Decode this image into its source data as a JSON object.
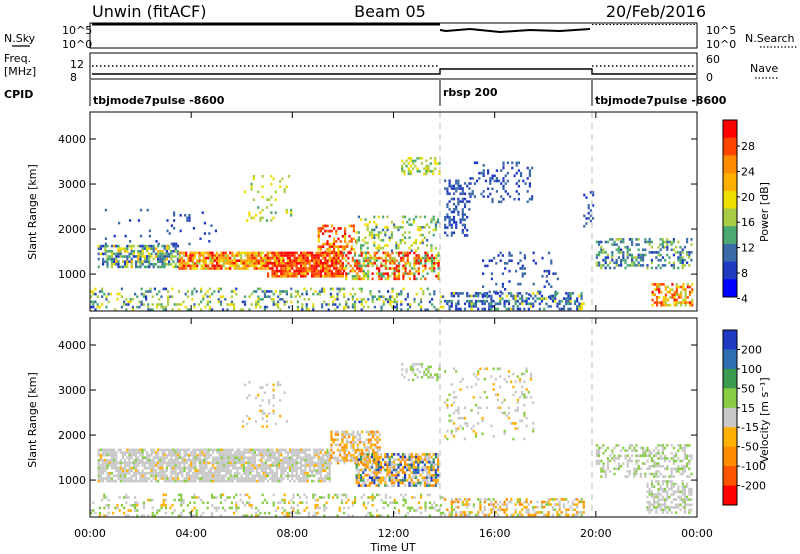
{
  "header": {
    "station": "Unwin (fitACF)",
    "beam": "Beam 05",
    "date": "20/Feb/2016"
  },
  "left_labels": {
    "nsky": "N.Sky",
    "freq_line1": "Freq.",
    "freq_line2": "[MHz]",
    "cpid": "CPID"
  },
  "right_labels": {
    "nsearch": "N.Search",
    "nave": "Nave"
  },
  "noise_panel": {
    "left_ticks": [
      "10^5",
      "10^0"
    ],
    "right_ticks": [
      "10^5",
      "10^0"
    ]
  },
  "freq_panel": {
    "left_ticks": [
      "12",
      "8"
    ],
    "right_ticks": [
      "60",
      "0"
    ]
  },
  "cpid_panel": {
    "segments": [
      {
        "label": "tbjmode7pulse -8600",
        "start_hour": 0,
        "end_hour": 14
      },
      {
        "label": "rbsp 200",
        "start_hour": 14,
        "end_hour": 20
      },
      {
        "label": "tbjmode7pulse -8600",
        "start_hour": 20,
        "end_hour": 24
      }
    ]
  },
  "chart_data": [
    {
      "type": "heatmap",
      "name": "power",
      "ylabel": "Slant Range [km]",
      "x_range_hours": [
        0,
        24
      ],
      "ylim": [
        180,
        4600
      ],
      "y_ticks": [
        1000,
        2000,
        3000,
        4000
      ],
      "colorbar": {
        "label": "Power [dB]",
        "ticks": [
          "28",
          "24",
          "20",
          "16",
          "12",
          "8",
          "4"
        ],
        "colors": [
          "#ff0000",
          "#ff4400",
          "#ff8c00",
          "#ffb000",
          "#eedd00",
          "#a8cc44",
          "#4aa870",
          "#3a6aa8",
          "#1f3ac0",
          "#0000ff"
        ]
      },
      "scatter_regions": [
        {
          "x0": 0.3,
          "x1": 3.5,
          "y0": 1150,
          "y1": 1650,
          "density": 0.65,
          "dist": [
            [
              3,
              0.08
            ],
            [
              4,
              0.12
            ],
            [
              5,
              0.15
            ],
            [
              6,
              0.28
            ],
            [
              7,
              0.25
            ],
            [
              8,
              0.12
            ]
          ]
        },
        {
          "x0": 3.5,
          "x1": 7.0,
          "y0": 1150,
          "y1": 1500,
          "density": 0.85,
          "dist": [
            [
              0,
              0.12
            ],
            [
              1,
              0.2
            ],
            [
              2,
              0.2
            ],
            [
              3,
              0.25
            ],
            [
              4,
              0.15
            ],
            [
              5,
              0.08
            ]
          ]
        },
        {
          "x0": 7.0,
          "x1": 10.0,
          "y0": 950,
          "y1": 1500,
          "density": 0.9,
          "dist": [
            [
              0,
              0.35
            ],
            [
              1,
              0.3
            ],
            [
              2,
              0.2
            ],
            [
              3,
              0.1
            ],
            [
              4,
              0.05
            ]
          ]
        },
        {
          "x0": 9.0,
          "x1": 10.5,
          "y0": 1500,
          "y1": 2100,
          "density": 0.45,
          "dist": [
            [
              0,
              0.25
            ],
            [
              1,
              0.25
            ],
            [
              2,
              0.2
            ],
            [
              3,
              0.2
            ],
            [
              4,
              0.1
            ]
          ]
        },
        {
          "x0": 10.0,
          "x1": 13.8,
          "y0": 900,
          "y1": 1500,
          "density": 0.6,
          "dist": [
            [
              0,
              0.2
            ],
            [
              1,
              0.2
            ],
            [
              2,
              0.15
            ],
            [
              5,
              0.2
            ],
            [
              6,
              0.15
            ],
            [
              4,
              0.1
            ]
          ]
        },
        {
          "x0": 10.5,
          "x1": 13.8,
          "y0": 1500,
          "y1": 2300,
          "density": 0.3,
          "dist": [
            [
              4,
              0.3
            ],
            [
              5,
              0.3
            ],
            [
              6,
              0.3
            ],
            [
              7,
              0.1
            ]
          ]
        },
        {
          "x0": 12.3,
          "x1": 13.8,
          "y0": 3200,
          "y1": 3600,
          "density": 0.4,
          "dist": [
            [
              4,
              0.35
            ],
            [
              5,
              0.35
            ],
            [
              6,
              0.3
            ]
          ]
        },
        {
          "x0": 6.0,
          "x1": 8.0,
          "y0": 2200,
          "y1": 3200,
          "density": 0.1,
          "dist": [
            [
              4,
              0.4
            ],
            [
              5,
              0.3
            ],
            [
              6,
              0.3
            ]
          ]
        },
        {
          "x0": 0.5,
          "x1": 5.0,
          "y0": 1650,
          "y1": 2450,
          "density": 0.06,
          "dist": [
            [
              7,
              0.6
            ],
            [
              8,
              0.4
            ]
          ]
        },
        {
          "x0": 14.0,
          "x1": 15.0,
          "y0": 1850,
          "y1": 3100,
          "density": 0.4,
          "dist": [
            [
              7,
              0.5
            ],
            [
              8,
              0.5
            ]
          ]
        },
        {
          "x0": 15.0,
          "x1": 17.5,
          "y0": 2600,
          "y1": 3500,
          "density": 0.22,
          "dist": [
            [
              7,
              0.5
            ],
            [
              8,
              0.5
            ]
          ]
        },
        {
          "x0": 15.5,
          "x1": 18.5,
          "y0": 500,
          "y1": 1500,
          "density": 0.12,
          "dist": [
            [
              7,
              0.6
            ],
            [
              8,
              0.4
            ]
          ]
        },
        {
          "x0": 14.0,
          "x1": 19.5,
          "y0": 220,
          "y1": 600,
          "density": 0.5,
          "dist": [
            [
              4,
              0.1
            ],
            [
              6,
              0.2
            ],
            [
              7,
              0.4
            ],
            [
              8,
              0.3
            ]
          ]
        },
        {
          "x0": 19.5,
          "x1": 19.9,
          "y0": 2000,
          "y1": 2900,
          "density": 0.3,
          "dist": [
            [
              7,
              0.6
            ],
            [
              8,
              0.4
            ]
          ]
        },
        {
          "x0": 20.0,
          "x1": 23.8,
          "y0": 1150,
          "y1": 1800,
          "density": 0.4,
          "dist": [
            [
              5,
              0.2
            ],
            [
              6,
              0.3
            ],
            [
              7,
              0.3
            ],
            [
              8,
              0.2
            ]
          ]
        },
        {
          "x0": 22.2,
          "x1": 23.8,
          "y0": 300,
          "y1": 800,
          "density": 0.55,
          "dist": [
            [
              0,
              0.1
            ],
            [
              1,
              0.15
            ],
            [
              2,
              0.15
            ],
            [
              3,
              0.2
            ],
            [
              4,
              0.2
            ],
            [
              5,
              0.2
            ]
          ]
        },
        {
          "x0": 0,
          "x1": 14,
          "y0": 200,
          "y1": 700,
          "density": 0.3,
          "dist": [
            [
              4,
              0.2
            ],
            [
              5,
              0.3
            ],
            [
              6,
              0.2
            ],
            [
              7,
              0.2
            ],
            [
              8,
              0.1
            ]
          ]
        }
      ]
    },
    {
      "type": "heatmap",
      "name": "velocity",
      "ylabel": "Slant Range [km]",
      "xlabel": "Time UT",
      "x_range_hours": [
        0,
        24
      ],
      "x_ticks": [
        "00:00",
        "04:00",
        "08:00",
        "12:00",
        "16:00",
        "20:00",
        "00:00"
      ],
      "ylim": [
        180,
        4600
      ],
      "y_ticks": [
        1000,
        2000,
        3000,
        4000
      ],
      "colorbar": {
        "label": "Velocity [m s⁻¹]",
        "ticks": [
          "200",
          "100",
          "50",
          "15",
          "-15",
          "-50",
          "-100",
          "-200"
        ],
        "colors": [
          "#1f3ac0",
          "#2e6eb0",
          "#3a9a50",
          "#88cc44",
          "#c8c8c8",
          "#ffb000",
          "#ff8c00",
          "#ff5500",
          "#ff0000"
        ]
      },
      "scatter_regions": [
        {
          "x0": 0.3,
          "x1": 9.5,
          "y0": 1000,
          "y1": 1700,
          "density": 0.8,
          "dist": [
            [
              4,
              0.85
            ],
            [
              5,
              0.08
            ],
            [
              3,
              0.07
            ]
          ]
        },
        {
          "x0": 9.5,
          "x1": 11.5,
          "y0": 1400,
          "y1": 2100,
          "density": 0.6,
          "dist": [
            [
              4,
              0.5
            ],
            [
              5,
              0.3
            ],
            [
              6,
              0.2
            ]
          ]
        },
        {
          "x0": 10.5,
          "x1": 13.8,
          "y0": 900,
          "y1": 1600,
          "density": 0.7,
          "dist": [
            [
              4,
              0.3
            ],
            [
              5,
              0.2
            ],
            [
              6,
              0.2
            ],
            [
              0,
              0.1
            ],
            [
              1,
              0.1
            ],
            [
              2,
              0.1
            ]
          ]
        },
        {
          "x0": 12.3,
          "x1": 13.8,
          "y0": 3200,
          "y1": 3600,
          "density": 0.35,
          "dist": [
            [
              4,
              0.6
            ],
            [
              3,
              0.4
            ]
          ]
        },
        {
          "x0": 6.0,
          "x1": 8.0,
          "y0": 2200,
          "y1": 3200,
          "density": 0.1,
          "dist": [
            [
              4,
              0.8
            ],
            [
              5,
              0.2
            ]
          ]
        },
        {
          "x0": 14.0,
          "x1": 17.5,
          "y0": 1900,
          "y1": 3500,
          "density": 0.15,
          "dist": [
            [
              4,
              0.6
            ],
            [
              5,
              0.2
            ],
            [
              3,
              0.2
            ]
          ]
        },
        {
          "x0": 14.0,
          "x1": 19.5,
          "y0": 220,
          "y1": 600,
          "density": 0.45,
          "dist": [
            [
              4,
              0.4
            ],
            [
              5,
              0.3
            ],
            [
              6,
              0.2
            ],
            [
              3,
              0.1
            ]
          ]
        },
        {
          "x0": 20.0,
          "x1": 23.8,
          "y0": 1100,
          "y1": 1800,
          "density": 0.4,
          "dist": [
            [
              4,
              0.6
            ],
            [
              3,
              0.4
            ]
          ]
        },
        {
          "x0": 22.0,
          "x1": 23.8,
          "y0": 300,
          "y1": 1000,
          "density": 0.5,
          "dist": [
            [
              4,
              0.8
            ],
            [
              3,
              0.2
            ]
          ]
        },
        {
          "x0": 0,
          "x1": 14,
          "y0": 200,
          "y1": 700,
          "density": 0.25,
          "dist": [
            [
              3,
              0.4
            ],
            [
              4,
              0.4
            ],
            [
              5,
              0.2
            ]
          ]
        }
      ]
    }
  ]
}
